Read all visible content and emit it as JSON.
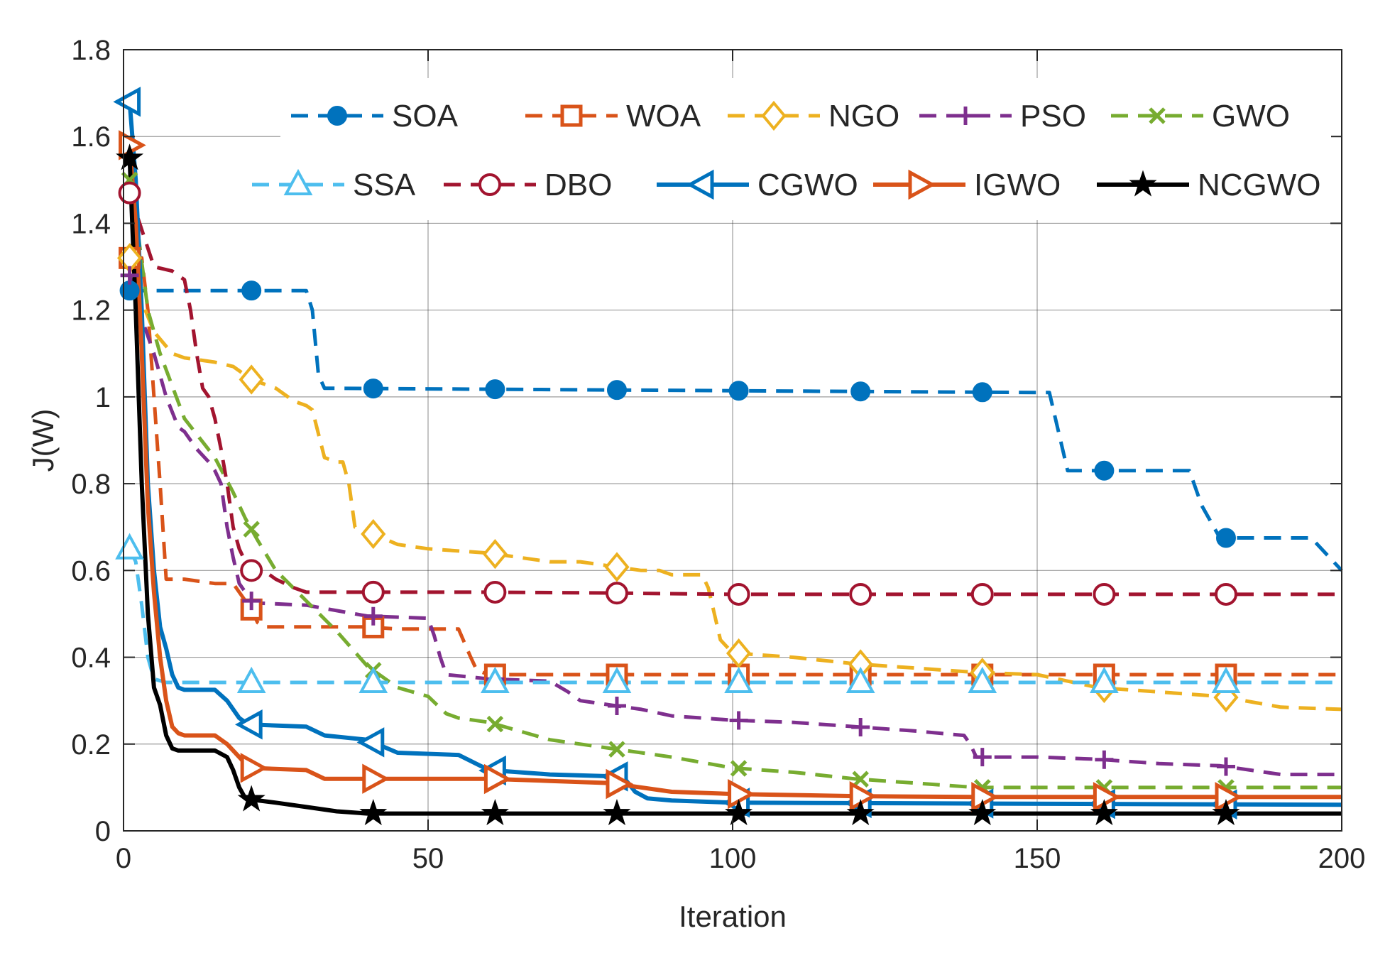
{
  "chart_data": {
    "type": "line",
    "title": "",
    "xlabel": "Iteration",
    "ylabel": "J(W)",
    "xlim": [
      0,
      200
    ],
    "ylim": [
      0,
      1.8
    ],
    "xticks": [
      0,
      50,
      100,
      150,
      200
    ],
    "yticks": [
      0,
      0.2,
      0.4,
      0.6,
      0.8,
      1,
      1.2,
      1.4,
      1.6,
      1.8
    ],
    "xtick_labels": [
      "0",
      "50",
      "100",
      "150",
      "200"
    ],
    "ytick_labels": [
      "0",
      "0.2",
      "0.4",
      "0.6",
      "0.8",
      "1",
      "1.2",
      "1.4",
      "1.6",
      "1.8"
    ],
    "grid": true,
    "legend_location": "top-right",
    "series": [
      {
        "name": "SOA",
        "color": "#0072BD",
        "dash": "dashed",
        "marker": "circle-filled",
        "x": [
          1,
          30,
          31,
          32,
          33,
          150,
          152,
          153,
          155,
          175,
          177,
          180,
          195,
          198,
          200
        ],
        "y": [
          1.245,
          1.245,
          1.2,
          1.05,
          1.02,
          1.01,
          1.01,
          0.95,
          0.83,
          0.83,
          0.75,
          0.675,
          0.675,
          0.63,
          0.6
        ]
      },
      {
        "name": "WOA",
        "color": "#D95319",
        "dash": "dashed",
        "marker": "square-open",
        "x": [
          1,
          3,
          4,
          5,
          6,
          7,
          10,
          15,
          18,
          20,
          21,
          22,
          23,
          40,
          45,
          55,
          57,
          58,
          60,
          200
        ],
        "y": [
          1.32,
          1.32,
          1.2,
          1.0,
          0.8,
          0.58,
          0.58,
          0.57,
          0.57,
          0.53,
          0.51,
          0.48,
          0.47,
          0.47,
          0.465,
          0.465,
          0.4,
          0.37,
          0.36,
          0.36
        ]
      },
      {
        "name": "NGO",
        "color": "#EDB120",
        "dash": "dashed",
        "marker": "diamond-open",
        "x": [
          1,
          3,
          5,
          8,
          10,
          15,
          18,
          21,
          25,
          28,
          30,
          31,
          33,
          35,
          36,
          37,
          38,
          40,
          45,
          50,
          60,
          70,
          75,
          80,
          85,
          88,
          90,
          95,
          96,
          97,
          98,
          100,
          110,
          120,
          130,
          140,
          150,
          160,
          170,
          180,
          190,
          200
        ],
        "y": [
          1.32,
          1.22,
          1.15,
          1.1,
          1.09,
          1.08,
          1.07,
          1.04,
          1.02,
          0.99,
          0.98,
          0.97,
          0.86,
          0.85,
          0.85,
          0.8,
          0.7,
          0.69,
          0.66,
          0.65,
          0.64,
          0.62,
          0.62,
          0.61,
          0.6,
          0.6,
          0.59,
          0.59,
          0.56,
          0.5,
          0.44,
          0.41,
          0.4,
          0.385,
          0.375,
          0.365,
          0.36,
          0.33,
          0.32,
          0.31,
          0.285,
          0.28
        ]
      },
      {
        "name": "PSO",
        "color": "#7E2F8E",
        "dash": "dashed",
        "marker": "plus",
        "x": [
          1,
          3,
          5,
          7,
          9,
          10,
          12,
          14,
          15,
          16,
          17,
          18,
          19,
          20,
          21,
          22,
          30,
          40,
          50,
          51,
          52,
          53,
          60,
          70,
          73,
          75,
          80,
          85,
          90,
          100,
          110,
          120,
          130,
          138,
          139,
          140,
          150,
          160,
          170,
          180,
          190,
          200
        ],
        "y": [
          1.28,
          1.18,
          1.1,
          1.0,
          0.93,
          0.92,
          0.88,
          0.85,
          0.83,
          0.8,
          0.7,
          0.63,
          0.57,
          0.55,
          0.53,
          0.525,
          0.52,
          0.495,
          0.49,
          0.45,
          0.4,
          0.36,
          0.35,
          0.345,
          0.32,
          0.3,
          0.29,
          0.28,
          0.265,
          0.255,
          0.25,
          0.24,
          0.23,
          0.22,
          0.2,
          0.17,
          0.17,
          0.165,
          0.155,
          0.15,
          0.13,
          0.13
        ]
      },
      {
        "name": "GWO",
        "color": "#77AC30",
        "dash": "dashed",
        "marker": "x",
        "x": [
          1,
          2,
          4,
          6,
          10,
          15,
          18,
          20,
          22,
          25,
          30,
          35,
          40,
          45,
          50,
          53,
          55,
          60,
          70,
          80,
          90,
          100,
          110,
          120,
          130,
          140,
          200
        ],
        "y": [
          1.5,
          1.42,
          1.2,
          1.1,
          0.95,
          0.86,
          0.78,
          0.72,
          0.67,
          0.6,
          0.53,
          0.46,
          0.38,
          0.33,
          0.31,
          0.27,
          0.26,
          0.25,
          0.21,
          0.19,
          0.17,
          0.145,
          0.135,
          0.12,
          0.11,
          0.1,
          0.1
        ]
      },
      {
        "name": "SSA",
        "color": "#4DBEEE",
        "dash": "dashed",
        "marker": "triangle-up-open",
        "x": [
          1,
          2,
          3,
          4,
          5,
          7,
          200
        ],
        "y": [
          0.65,
          0.62,
          0.52,
          0.4,
          0.35,
          0.342,
          0.342
        ]
      },
      {
        "name": "DBO",
        "color": "#A2142F",
        "dash": "dashed",
        "marker": "circle-open",
        "x": [
          1,
          5,
          8,
          10,
          11,
          12,
          13,
          14,
          15,
          16,
          17,
          18,
          19,
          20,
          21,
          23,
          25,
          28,
          30,
          60,
          80,
          100,
          200
        ],
        "y": [
          1.47,
          1.3,
          1.29,
          1.27,
          1.2,
          1.1,
          1.02,
          1.0,
          0.95,
          0.88,
          0.8,
          0.7,
          0.65,
          0.62,
          0.6,
          0.6,
          0.58,
          0.56,
          0.55,
          0.55,
          0.548,
          0.545,
          0.545
        ]
      },
      {
        "name": "CGWO",
        "color": "#0072BD",
        "dash": "solid",
        "marker": "triangle-left",
        "x": [
          1,
          2,
          3,
          4,
          5,
          6,
          7,
          8,
          9,
          10,
          15,
          17,
          19,
          20,
          21,
          30,
          33,
          40,
          45,
          55,
          60,
          70,
          82,
          84,
          86,
          90,
          100,
          200
        ],
        "y": [
          1.68,
          1.5,
          1.2,
          0.8,
          0.6,
          0.47,
          0.42,
          0.36,
          0.33,
          0.325,
          0.325,
          0.3,
          0.26,
          0.25,
          0.245,
          0.24,
          0.22,
          0.21,
          0.18,
          0.175,
          0.14,
          0.13,
          0.125,
          0.09,
          0.075,
          0.07,
          0.065,
          0.06
        ]
      },
      {
        "name": "IGWO",
        "color": "#D95319",
        "dash": "solid",
        "marker": "triangle-right",
        "x": [
          1,
          2,
          3,
          4,
          5,
          6,
          7,
          8,
          9,
          10,
          15,
          17,
          19,
          20,
          21,
          30,
          33,
          40,
          60,
          70,
          80,
          90,
          100,
          120,
          140,
          200
        ],
        "y": [
          1.58,
          1.4,
          1.1,
          0.75,
          0.55,
          0.4,
          0.3,
          0.24,
          0.225,
          0.22,
          0.22,
          0.2,
          0.17,
          0.155,
          0.145,
          0.14,
          0.12,
          0.12,
          0.12,
          0.115,
          0.11,
          0.09,
          0.085,
          0.08,
          0.078,
          0.078
        ]
      },
      {
        "name": "NCGWO",
        "color": "#000000",
        "dash": "solid",
        "marker": "star",
        "x": [
          1,
          2,
          3,
          4,
          5,
          6,
          7,
          8,
          9,
          10,
          15,
          17,
          18,
          19,
          20,
          21,
          25,
          30,
          35,
          40,
          200
        ],
        "y": [
          1.55,
          1.2,
          0.8,
          0.5,
          0.33,
          0.29,
          0.22,
          0.19,
          0.185,
          0.185,
          0.185,
          0.17,
          0.14,
          0.1,
          0.075,
          0.072,
          0.065,
          0.055,
          0.045,
          0.04,
          0.04
        ]
      }
    ]
  }
}
